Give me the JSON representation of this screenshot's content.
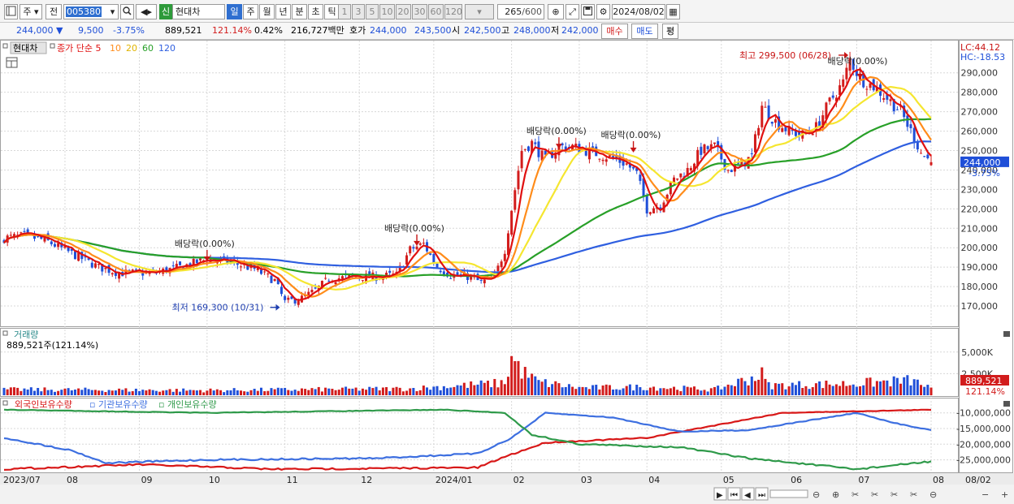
{
  "toolbar": {
    "type_label": "주",
    "prev_label": "전",
    "stock_code": "005380",
    "new_badge": "신",
    "stock_name": "현대차",
    "period_buttons": [
      "일",
      "주",
      "월",
      "년",
      "분",
      "초",
      "틱"
    ],
    "active_period": "일",
    "interval_buttons": [
      "1",
      "3",
      "5",
      "10",
      "20",
      "30",
      "60",
      "120"
    ],
    "data_count": "265",
    "data_max": "/600",
    "date": "2024/08/02"
  },
  "quote": {
    "price": "244,000",
    "change": "9,500",
    "change_pct": "-3.75%",
    "volume": "889,521",
    "volume_ratio": "121.14%",
    "turnover_ratio": "0.42%",
    "amount": "216,727백만",
    "ask_label": "호가",
    "ask1": "244,000",
    "ask2": "243,500",
    "open_label": "시",
    "open": "242,500",
    "high_label": "고",
    "high": "248,000",
    "low_label": "저",
    "low": "242,000",
    "buy_label": "매수",
    "sell_label": "매도",
    "eval_label": "평"
  },
  "colors": {
    "up": "#d21c1c",
    "down": "#1f4fd8",
    "ma5": "#e01010",
    "ma10": "#ff8c1a",
    "ma20": "#f5e630",
    "ma60": "#28a028",
    "ma120": "#2f5fe0",
    "foreign": "#d81818",
    "institution": "#3d6fe0",
    "individual": "#2f9a4a"
  },
  "chart_data": [
    {
      "type": "line",
      "panel": "price",
      "title_stock": "현대차",
      "legend": [
        {
          "name": "종가 단순 5",
          "color": "#e01010"
        },
        {
          "name": "10",
          "color": "#ff8c1a"
        },
        {
          "name": "20",
          "color": "#e0b400"
        },
        {
          "name": "60",
          "color": "#28a028"
        },
        {
          "name": "120",
          "color": "#2f5fe0"
        }
      ],
      "ylim": [
        160000,
        302000
      ],
      "yticks": [
        "170,000",
        "180,000",
        "190,000",
        "200,000",
        "210,000",
        "220,000",
        "230,000",
        "240,000",
        "250,000",
        "260,000",
        "270,000",
        "280,000",
        "290,000"
      ],
      "yticks_values": [
        170000,
        180000,
        190000,
        200000,
        210000,
        220000,
        230000,
        240000,
        250000,
        260000,
        270000,
        280000,
        290000
      ],
      "x_month_labels": [
        "2023/07",
        "08",
        "09",
        "10",
        "11",
        "12",
        "2024/01",
        "02",
        "03",
        "04",
        "05",
        "06",
        "07",
        "08"
      ],
      "x_month_start_index": [
        0,
        18,
        40,
        60,
        83,
        105,
        127,
        150,
        170,
        190,
        212,
        232,
        252,
        274
      ],
      "n_bars": 275,
      "close_knots": [
        [
          0,
          205000
        ],
        [
          6,
          206000
        ],
        [
          12,
          204000
        ],
        [
          20,
          197000
        ],
        [
          28,
          190000
        ],
        [
          34,
          187000
        ],
        [
          44,
          187000
        ],
        [
          52,
          190000
        ],
        [
          60,
          194000
        ],
        [
          66,
          193000
        ],
        [
          74,
          189000
        ],
        [
          80,
          183000
        ],
        [
          83,
          172000
        ],
        [
          88,
          174000
        ],
        [
          92,
          178000
        ],
        [
          96,
          184000
        ],
        [
          104,
          185000
        ],
        [
          110,
          185000
        ],
        [
          116,
          186000
        ],
        [
          120,
          199000
        ],
        [
          124,
          202000
        ],
        [
          128,
          190000
        ],
        [
          132,
          186000
        ],
        [
          138,
          185000
        ],
        [
          141,
          182000
        ],
        [
          145,
          185000
        ],
        [
          148,
          199000
        ],
        [
          150,
          220000
        ],
        [
          153,
          250000
        ],
        [
          156,
          254000
        ],
        [
          160,
          245000
        ],
        [
          164,
          252000
        ],
        [
          168,
          252000
        ],
        [
          172,
          250000
        ],
        [
          176,
          248000
        ],
        [
          180,
          246000
        ],
        [
          184,
          243000
        ],
        [
          187,
          238000
        ],
        [
          190,
          220000
        ],
        [
          194,
          222000
        ],
        [
          198,
          235000
        ],
        [
          202,
          240000
        ],
        [
          206,
          250000
        ],
        [
          210,
          252000
        ],
        [
          214,
          240000
        ],
        [
          218,
          243000
        ],
        [
          221,
          247000
        ],
        [
          224,
          273000
        ],
        [
          228,
          265000
        ],
        [
          232,
          260000
        ],
        [
          236,
          258000
        ],
        [
          240,
          262000
        ],
        [
          244,
          275000
        ],
        [
          248,
          285000
        ],
        [
          250,
          297000
        ],
        [
          253,
          287000
        ],
        [
          257,
          283000
        ],
        [
          261,
          277000
        ],
        [
          265,
          270000
        ],
        [
          268,
          260000
        ],
        [
          271,
          249000
        ],
        [
          274,
          244000
        ]
      ],
      "annotations": [
        {
          "label": "최고 299,500 (06/28)",
          "bar": 250,
          "value": 299500,
          "color": "#c81414"
        },
        {
          "label": "최저 169,300 (10/31)",
          "bar": 82,
          "value": 169300,
          "color": "#1f3fb0"
        },
        {
          "label": "배당락(0.00%)",
          "bar": 60,
          "value": 193000
        },
        {
          "label": "배당락(0.00%)",
          "bar": 122,
          "value": 201000
        },
        {
          "label": "배당락(0.00%)",
          "bar": 164,
          "value": 251000
        },
        {
          "label": "배당락(0.00%)",
          "bar": 186,
          "value": 249000
        },
        {
          "label": "배당락(0.00%)",
          "bar": 253,
          "value": 287000
        }
      ],
      "lc_hc": {
        "lc": "LC:44.12",
        "hc": "HC:-18.53"
      },
      "last_price_tag": "244,000",
      "last_pct_tag": "-3.75%"
    },
    {
      "type": "bar",
      "panel": "volume",
      "title": "거래량",
      "current_label": "889,521주(121.14%)",
      "ylim": [
        0,
        6200000
      ],
      "yticks": [
        "2,500K",
        "5,000K"
      ],
      "yticks_values": [
        2500000,
        5000000
      ],
      "volume_knots": [
        [
          0,
          700000
        ],
        [
          60,
          600000
        ],
        [
          120,
          800000
        ],
        [
          148,
          1500000
        ],
        [
          150,
          4500000
        ],
        [
          154,
          2600000
        ],
        [
          158,
          1600000
        ],
        [
          170,
          900000
        ],
        [
          190,
          1000000
        ],
        [
          210,
          700000
        ],
        [
          224,
          2500000
        ],
        [
          226,
          1200000
        ],
        [
          250,
          1400000
        ],
        [
          268,
          1800000
        ],
        [
          274,
          889521
        ]
      ],
      "last_value_tag": "889,521",
      "last_pct_tag": "121.14%"
    },
    {
      "type": "line",
      "panel": "holdings",
      "title": "외국인보유수량 ▫ 기관보유수량 ▫ 개인보유수량",
      "series": [
        {
          "name": "외국인보유수량",
          "knots": [
            [
              0,
              -28000000
            ],
            [
              40,
              -26500000
            ],
            [
              80,
              -28000000
            ],
            [
              140,
              -27500000
            ],
            [
              148,
              -24000000
            ],
            [
              160,
              -19500000
            ],
            [
              190,
              -18000000
            ],
            [
              230,
              -10000000
            ],
            [
              274,
              -9000000
            ]
          ]
        },
        {
          "name": "기관보유수량",
          "knots": [
            [
              0,
              -18000000
            ],
            [
              20,
              -22000000
            ],
            [
              30,
              -26000000
            ],
            [
              60,
              -25000000
            ],
            [
              110,
              -24500000
            ],
            [
              140,
              -23000000
            ],
            [
              150,
              -18000000
            ],
            [
              160,
              -10000000
            ],
            [
              180,
              -11500000
            ],
            [
              200,
              -16000000
            ],
            [
              220,
              -15500000
            ],
            [
              252,
              -10000000
            ],
            [
              262,
              -13000000
            ],
            [
              274,
              -15500000
            ]
          ]
        },
        {
          "name": "개인보유수량",
          "knots": [
            [
              0,
              -9000000
            ],
            [
              60,
              -10000000
            ],
            [
              130,
              -9000000
            ],
            [
              148,
              -10000000
            ],
            [
              156,
              -17000000
            ],
            [
              170,
              -20000000
            ],
            [
              200,
              -21000000
            ],
            [
              220,
              -24500000
            ],
            [
              252,
              -28000000
            ],
            [
              274,
              -25500000
            ]
          ]
        }
      ],
      "ylim": [
        -29000000,
        -8000000
      ],
      "yticks": [
        "-10,000,000",
        "-15,000,000",
        "-20,000,000",
        "-25,000,000"
      ],
      "yticks_values": [
        -10000000,
        -15000000,
        -20000000,
        -25000000
      ]
    }
  ],
  "xaxis_right_label": "08/02"
}
